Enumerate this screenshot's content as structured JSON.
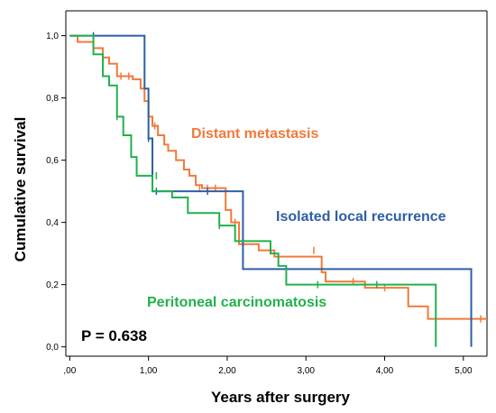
{
  "chart_data": {
    "type": "line",
    "xlabel": "Years after surgery",
    "ylabel": "Cumulative survival",
    "xlim": [
      -0.05,
      5.3
    ],
    "ylim": [
      -0.03,
      1.08
    ],
    "x_ticks": [
      0,
      1,
      2,
      3,
      4,
      5
    ],
    "x_tick_labels": [
      ",00",
      "1,00",
      "2,00",
      "3,00",
      "4,00",
      "5,00"
    ],
    "y_ticks": [
      0,
      0.2,
      0.4,
      0.6,
      0.8,
      1.0
    ],
    "y_tick_labels": [
      "0,0",
      "0,2",
      "0,4",
      "0,6",
      "0,8",
      "1,0"
    ],
    "grid": false,
    "annotation": "P = 0.638",
    "series": [
      {
        "name": "Distant metastasis",
        "color": "#f07a3a",
        "step": [
          [
            0,
            1.0
          ],
          [
            0.1,
            0.98
          ],
          [
            0.3,
            0.96
          ],
          [
            0.42,
            0.93
          ],
          [
            0.5,
            0.91
          ],
          [
            0.6,
            0.87
          ],
          [
            0.8,
            0.86
          ],
          [
            0.9,
            0.83
          ],
          [
            0.95,
            0.79
          ],
          [
            1.0,
            0.74
          ],
          [
            1.05,
            0.71
          ],
          [
            1.12,
            0.68
          ],
          [
            1.2,
            0.65
          ],
          [
            1.25,
            0.63
          ],
          [
            1.35,
            0.6
          ],
          [
            1.45,
            0.57
          ],
          [
            1.52,
            0.55
          ],
          [
            1.6,
            0.52
          ],
          [
            1.68,
            0.51
          ],
          [
            1.98,
            0.44
          ],
          [
            2.05,
            0.4
          ],
          [
            2.15,
            0.33
          ],
          [
            2.4,
            0.31
          ],
          [
            2.6,
            0.29
          ],
          [
            3.2,
            0.24
          ],
          [
            3.25,
            0.21
          ],
          [
            3.75,
            0.19
          ],
          [
            4.3,
            0.13
          ],
          [
            4.55,
            0.09
          ]
        ],
        "end_x": 5.3,
        "censor": [
          [
            0.65,
            0.87
          ],
          [
            0.75,
            0.87
          ],
          [
            1.08,
            0.71
          ],
          [
            1.65,
            0.51
          ],
          [
            1.75,
            0.51
          ],
          [
            1.85,
            0.51
          ],
          [
            2.1,
            0.4
          ],
          [
            3.1,
            0.31
          ],
          [
            3.6,
            0.21
          ],
          [
            4.0,
            0.19
          ],
          [
            5.22,
            0.09
          ]
        ]
      },
      {
        "name": "Isolated local recurrence",
        "color": "#2e5fa3",
        "step": [
          [
            0,
            1.0
          ],
          [
            0.95,
            0.83
          ],
          [
            1.0,
            0.67
          ],
          [
            1.05,
            0.5
          ],
          [
            2.2,
            0.25
          ],
          [
            5.1,
            0.0
          ]
        ],
        "end_x": 5.1,
        "censor": [
          [
            0.3,
            1.0
          ],
          [
            1.0,
            0.67
          ],
          [
            1.1,
            0.5
          ],
          [
            1.75,
            0.5
          ]
        ]
      },
      {
        "name": "Peritoneal carcinomatosis",
        "color": "#22b14c",
        "step": [
          [
            0,
            1.0
          ],
          [
            0.3,
            0.94
          ],
          [
            0.42,
            0.87
          ],
          [
            0.5,
            0.84
          ],
          [
            0.6,
            0.74
          ],
          [
            0.68,
            0.68
          ],
          [
            0.78,
            0.61
          ],
          [
            0.85,
            0.55
          ],
          [
            1.05,
            0.5
          ],
          [
            1.3,
            0.48
          ],
          [
            1.5,
            0.43
          ],
          [
            1.9,
            0.39
          ],
          [
            2.1,
            0.34
          ],
          [
            2.55,
            0.3
          ],
          [
            2.65,
            0.26
          ],
          [
            2.75,
            0.2
          ],
          [
            3.55,
            0.2
          ],
          [
            4.65,
            0.0
          ]
        ],
        "end_x": 4.65,
        "censor": [
          [
            0.6,
            0.74
          ],
          [
            1.1,
            0.55
          ],
          [
            1.9,
            0.39
          ],
          [
            3.15,
            0.2
          ],
          [
            3.9,
            0.2
          ]
        ]
      }
    ]
  }
}
